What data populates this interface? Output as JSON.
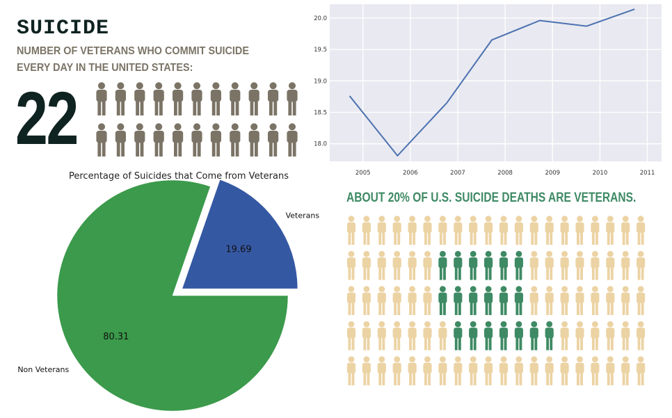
{
  "infographic_top": {
    "title": "SUICIDE",
    "subtitle": "NUMBER OF VETERANS WHO COMMIT SUICIDE EVERY DAY IN THE UNITED STATES:",
    "number": "22",
    "icon_count": 22,
    "icon": "person-icon",
    "icon_color": "#7b7466"
  },
  "infographic_bottom": {
    "title": "ABOUT 20% OF U.S. SUICIDE DEATHS ARE VETERANS.",
    "rows": 5,
    "cols": 20,
    "highlight_fraction": 0.2,
    "icon": "person-icon",
    "base_color": "#ecd3a4",
    "highlight_color": "#3e8a64"
  },
  "chart_data": [
    {
      "type": "line",
      "title": "",
      "xlabel": "",
      "ylabel": "",
      "x": [
        2005,
        2006,
        2007,
        2008,
        2009,
        2010,
        2011
      ],
      "x_ticks": [
        "2005",
        "2006",
        "2007",
        "2008",
        "2009",
        "2010",
        "2011"
      ],
      "y_ticks": [
        "18.0",
        "18.5",
        "19.0",
        "19.5",
        "20.0"
      ],
      "series": [
        {
          "values": [
            18.76,
            17.81,
            18.65,
            19.65,
            19.96,
            19.87,
            20.14
          ]
        }
      ],
      "xlim": [
        2004.3,
        2011.3
      ],
      "ylim": [
        17.72,
        20.22
      ],
      "grid": true,
      "background": "#e9e9f1",
      "line_color": "#4c72b0"
    },
    {
      "type": "pie",
      "title": "Percentage of Suicides that Come from Veterans",
      "slices": [
        {
          "label": "Veterans",
          "value": 19.69,
          "display": "19.69",
          "color": "#3558a3",
          "exploded": true
        },
        {
          "label": "Non Veterans",
          "value": 80.31,
          "display": "80.31",
          "color": "#3b9a4b",
          "exploded": false
        }
      ]
    }
  ]
}
